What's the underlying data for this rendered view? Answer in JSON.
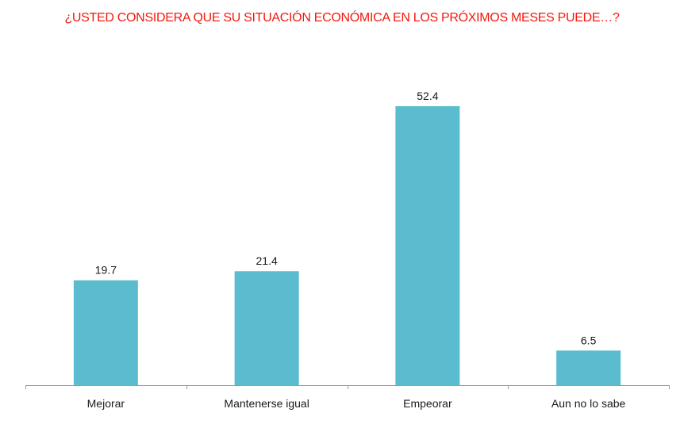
{
  "chart_data": {
    "type": "bar",
    "title": "¿USTED CONSIDERA QUE SU SITUACIÓN ECONÓMICA EN LOS PRÓXIMOS MESES PUEDE…?",
    "categories": [
      "Mejorar",
      "Mantenerse igual",
      "Empeorar",
      "Aun no lo sabe"
    ],
    "values": [
      19.7,
      21.4,
      52.4,
      6.5
    ],
    "value_labels": [
      "19.7",
      "21.4",
      "52.4",
      "6.5"
    ],
    "xlabel": "",
    "ylabel": "",
    "ylim": [
      0,
      52.4
    ],
    "grid": false,
    "legend": "none",
    "colors": {
      "bar": "#5bbccf",
      "title": "#f2190d",
      "axis": "#9a9a9a",
      "text": "#1a1a1a"
    }
  }
}
